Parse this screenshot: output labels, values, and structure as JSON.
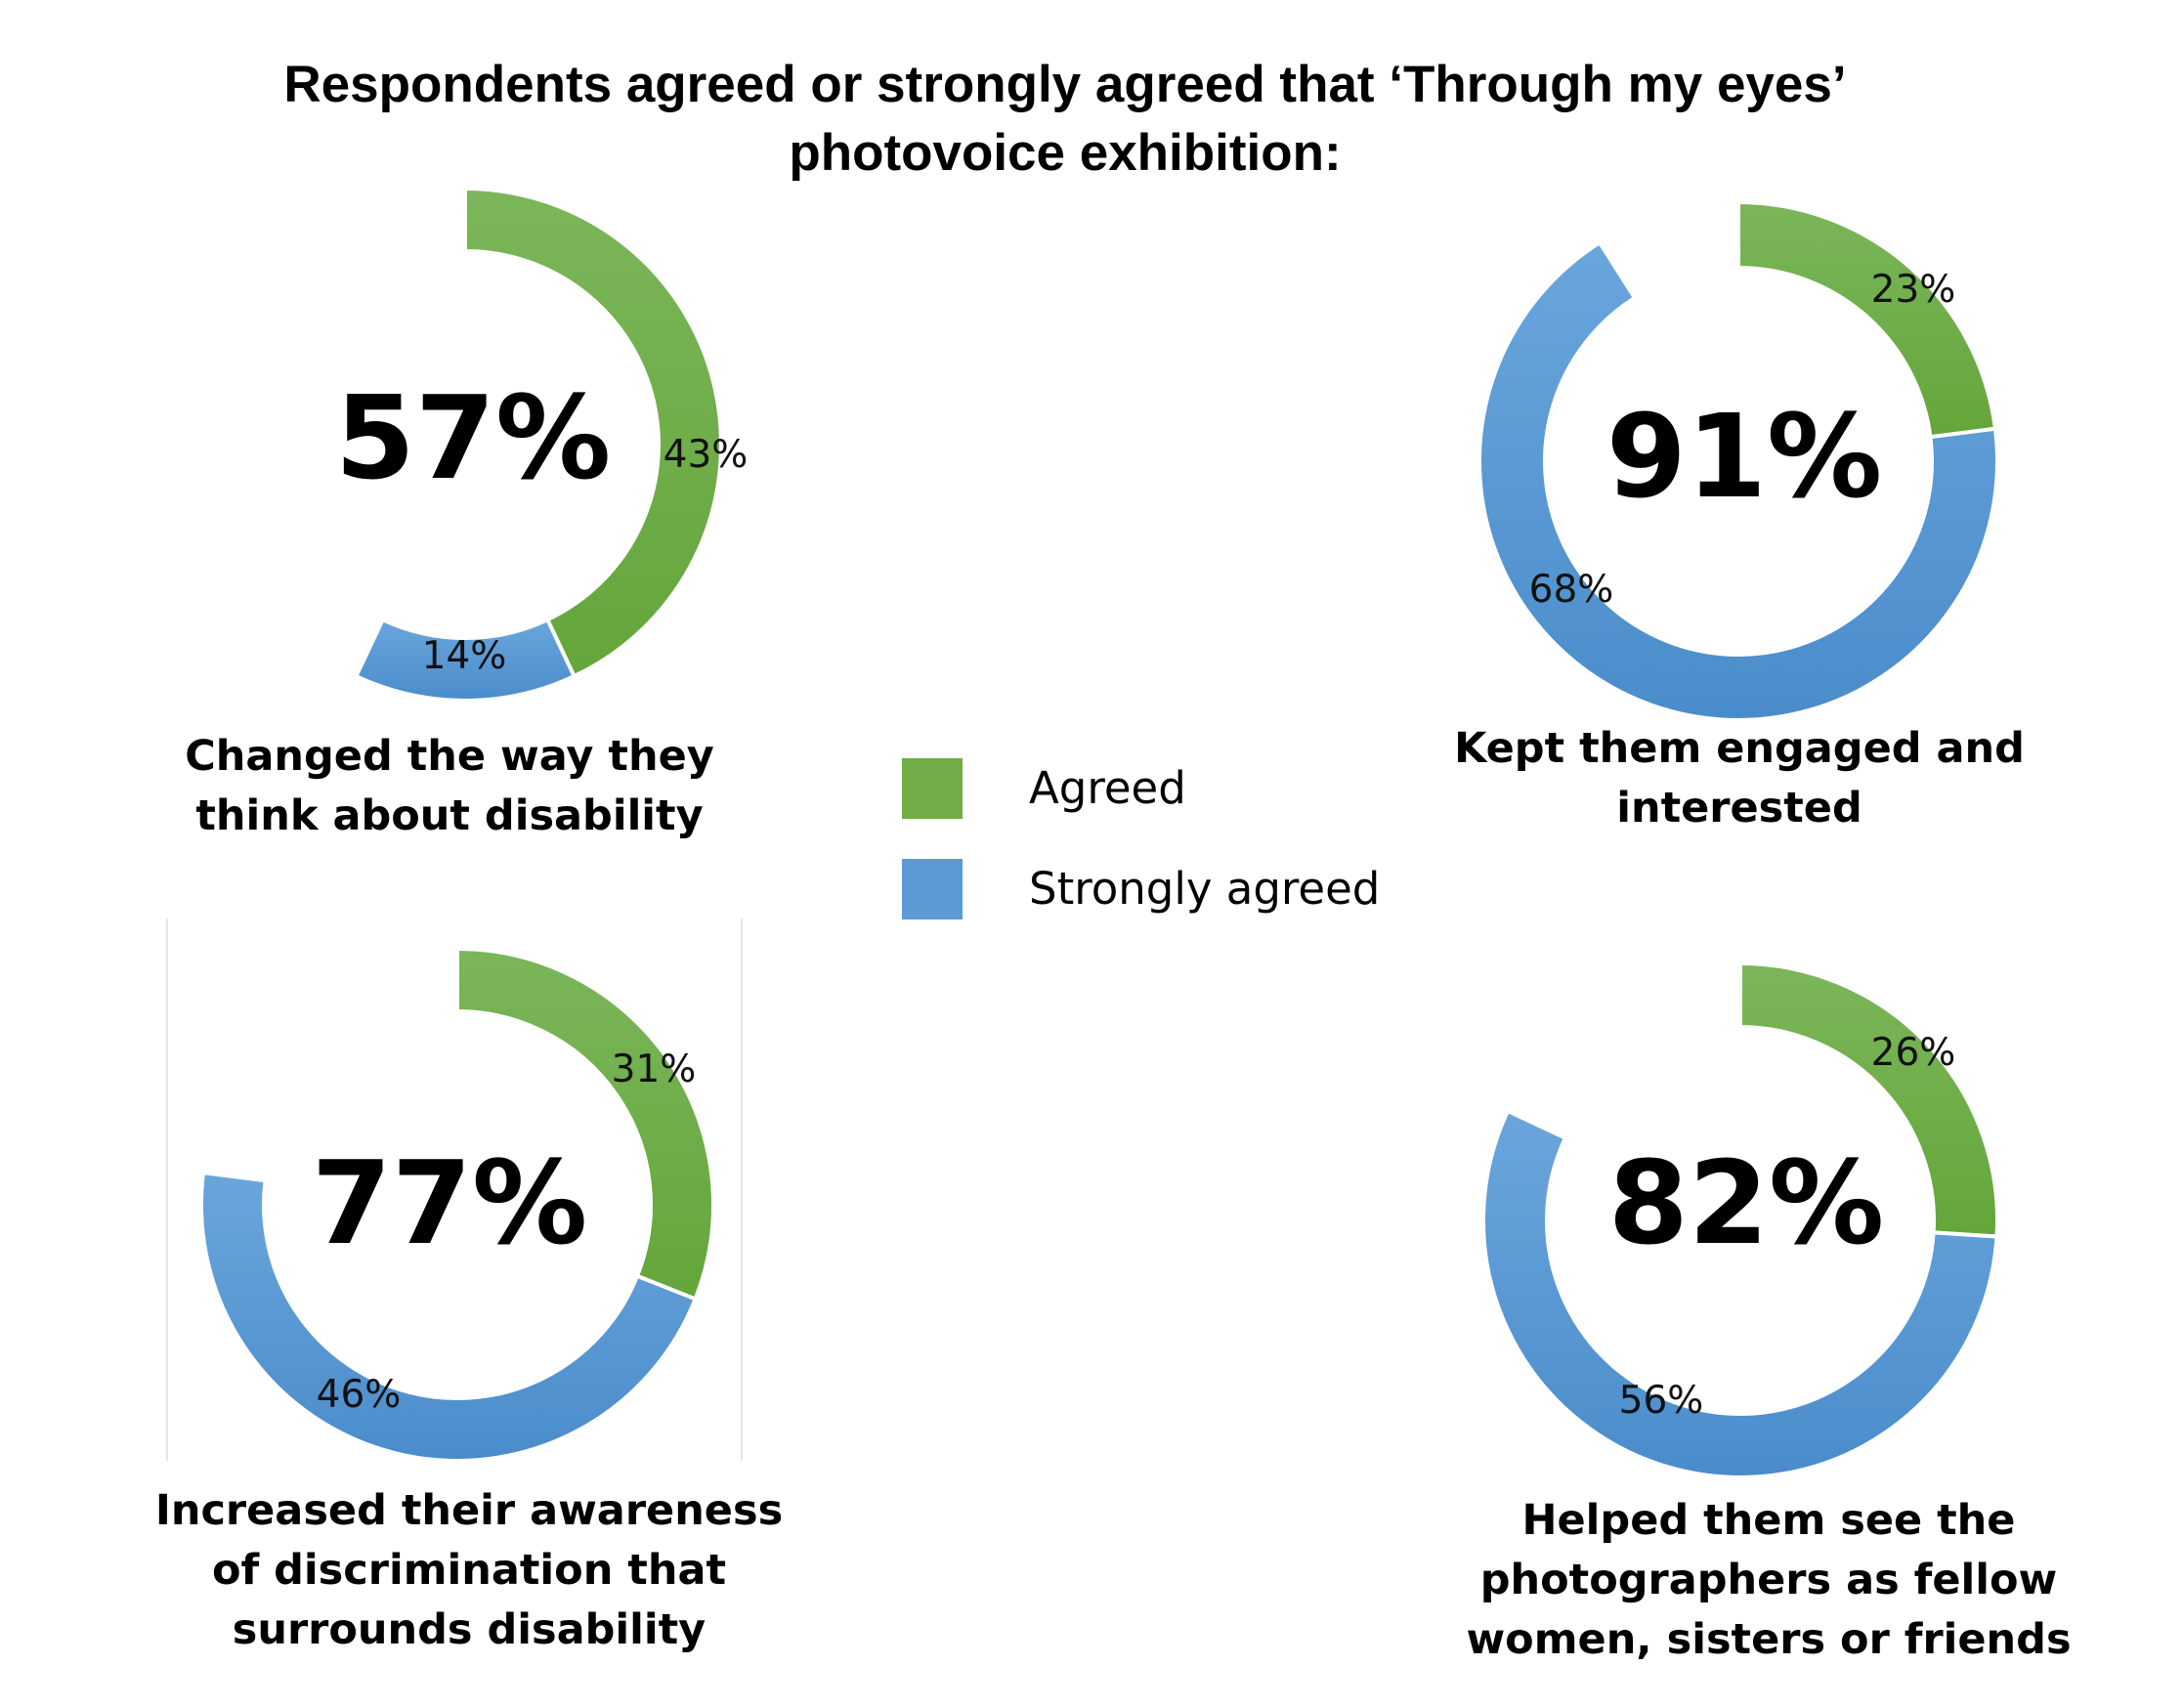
{
  "title_lines": [
    "Respondents agreed or strongly agreed that ‘Through my eyes’",
    "photovoice exhibition:"
  ],
  "legend": [
    {
      "label": "Agreed",
      "color": "#70ad47"
    },
    {
      "label": "Strongly agreed",
      "color": "#5b9bd5"
    }
  ],
  "chart_data": [
    {
      "type": "donut",
      "total_label": "57%",
      "caption_lines": [
        "Changed the way they",
        "think about disability"
      ],
      "series": [
        {
          "name": "Agreed",
          "value": 43,
          "label": "43%"
        },
        {
          "name": "Strongly agreed",
          "value": 14,
          "label": "14%"
        }
      ]
    },
    {
      "type": "donut",
      "total_label": "91%",
      "caption_lines": [
        "Kept them engaged and",
        "interested"
      ],
      "series": [
        {
          "name": "Agreed",
          "value": 23,
          "label": "23%"
        },
        {
          "name": "Strongly agreed",
          "value": 68,
          "label": "68%"
        }
      ]
    },
    {
      "type": "donut",
      "total_label": "77%",
      "caption_lines": [
        "Increased their awareness",
        "of discrimination that",
        "surrounds disability"
      ],
      "series": [
        {
          "name": "Agreed",
          "value": 31,
          "label": "31%"
        },
        {
          "name": "Strongly agreed",
          "value": 46,
          "label": "46%"
        }
      ]
    },
    {
      "type": "donut",
      "total_label": "82%",
      "caption_lines": [
        "Helped them see the",
        "photographers as fellow",
        "women, sisters or friends"
      ],
      "series": [
        {
          "name": "Agreed",
          "value": 26,
          "label": "26%"
        },
        {
          "name": "Strongly agreed",
          "value": 56,
          "label": "56%"
        }
      ]
    }
  ]
}
